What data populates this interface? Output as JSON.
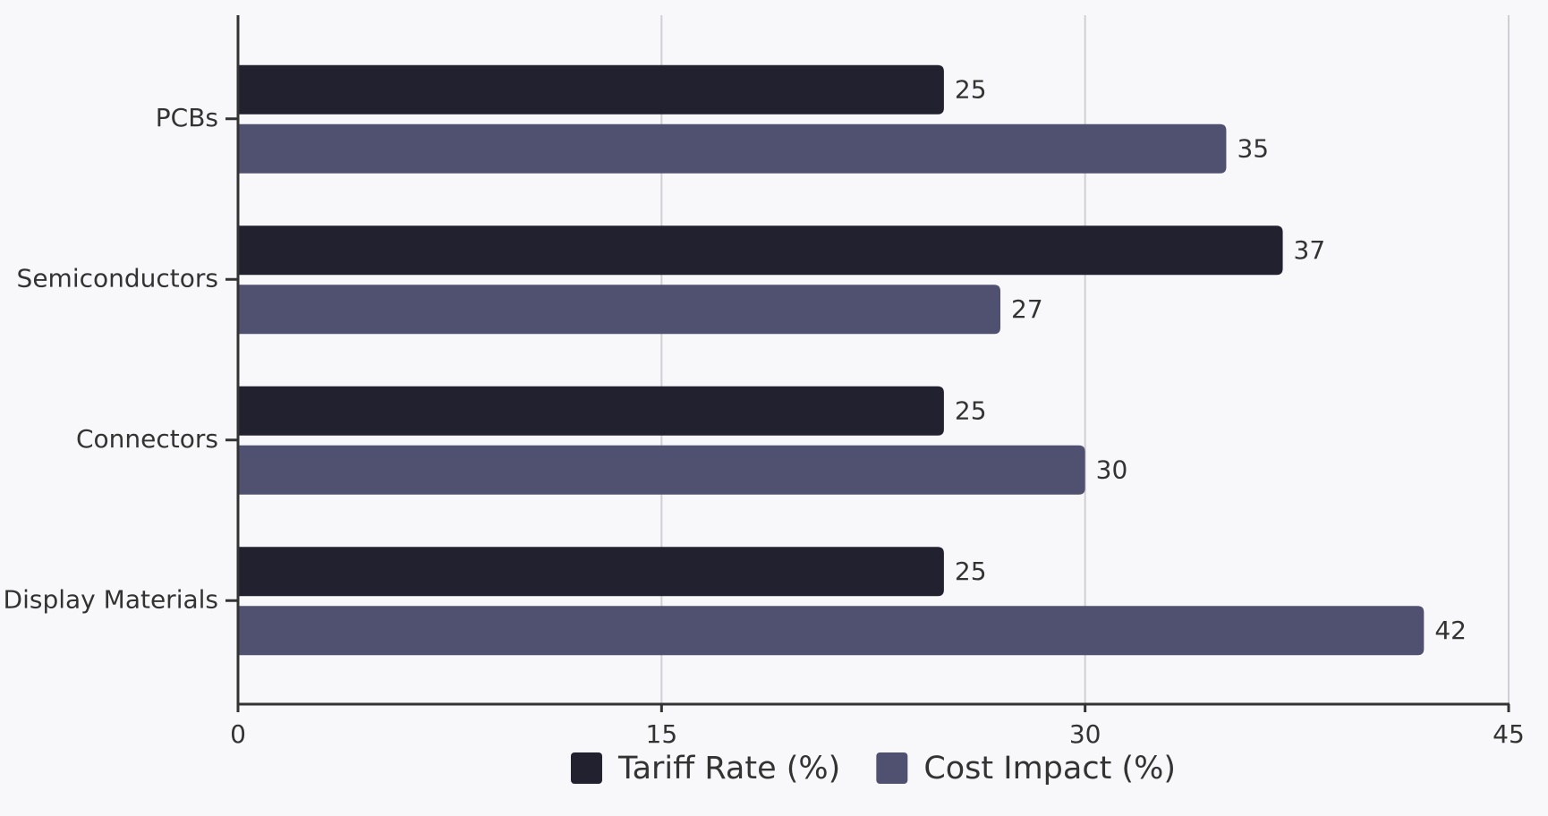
{
  "chart_data": {
    "type": "bar",
    "orientation": "horizontal",
    "categories": [
      "PCBs",
      "Semiconductors",
      "Connectors",
      "Display Materials"
    ],
    "series": [
      {
        "name": "Tariff Rate (%)",
        "color": "#22212f",
        "values": [
          25,
          37,
          25,
          25
        ]
      },
      {
        "name": "Cost Impact (%)",
        "color": "#505070",
        "values": [
          35,
          27,
          30,
          42
        ]
      }
    ],
    "xlim": [
      0,
      45
    ],
    "xticks": [
      0,
      15,
      30,
      45
    ],
    "grid": true,
    "legend": "bottom"
  }
}
